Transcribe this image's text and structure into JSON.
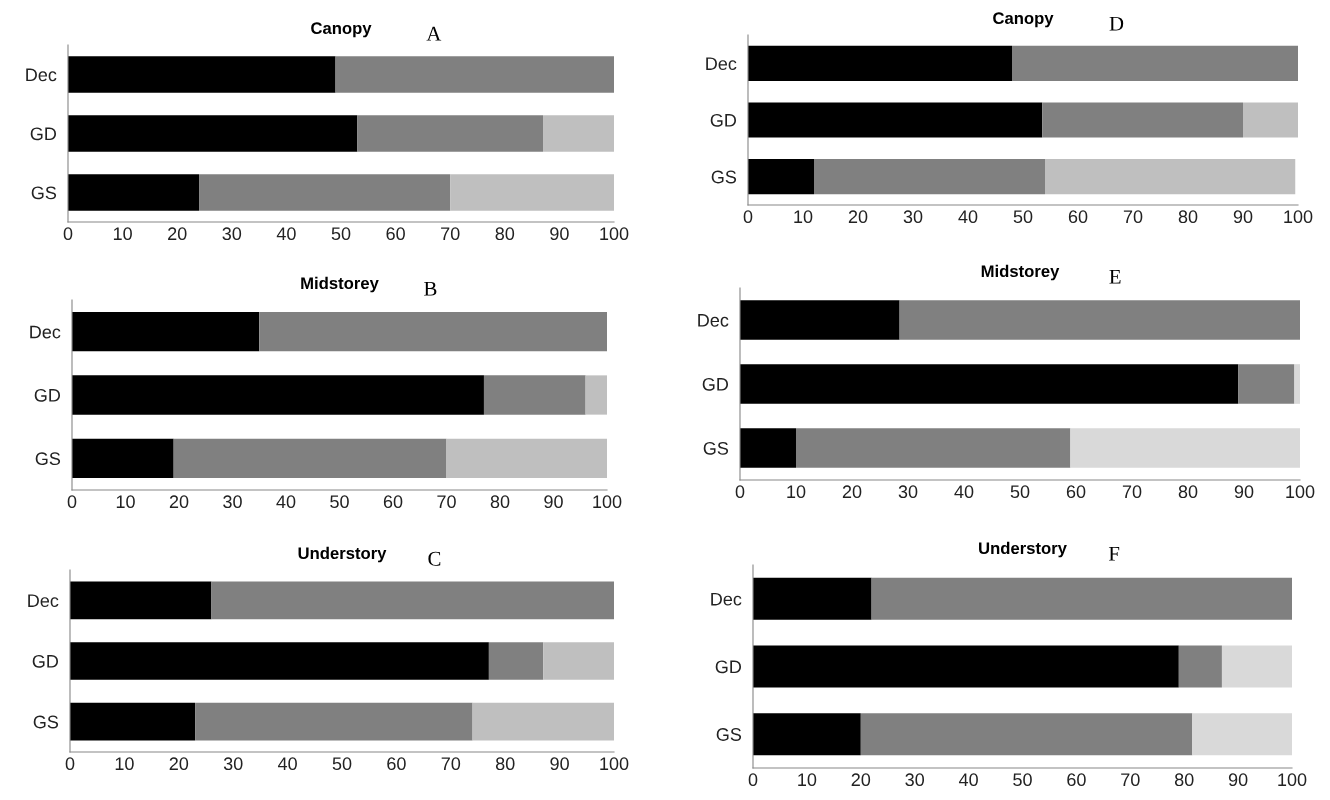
{
  "chart_data": [
    {
      "type": "bar",
      "orientation": "horizontal",
      "stacked": true,
      "title": "Canopy",
      "annotations": [
        "A"
      ],
      "categories": [
        "Dec",
        "GD",
        "GS"
      ],
      "xlim": [
        0,
        100
      ],
      "xticks": [
        0,
        10,
        20,
        30,
        40,
        50,
        60,
        70,
        80,
        90,
        100
      ],
      "series": [
        {
          "color": "#000000",
          "values": [
            49,
            53,
            24
          ]
        },
        {
          "color": "#808080",
          "values": [
            51,
            34,
            46
          ]
        },
        {
          "color": "#bfbfbf",
          "values": [
            null,
            13,
            30
          ]
        }
      ]
    },
    {
      "type": "bar",
      "orientation": "horizontal",
      "stacked": true,
      "title": "Canopy",
      "annotations": [
        "D"
      ],
      "categories": [
        "Dec",
        "GD",
        "GS"
      ],
      "xlim": [
        0,
        100
      ],
      "xticks": [
        0,
        10,
        20,
        30,
        40,
        50,
        60,
        70,
        80,
        90,
        100
      ],
      "series": [
        {
          "color": "#000000",
          "values": [
            48,
            53.5,
            12
          ]
        },
        {
          "color": "#808080",
          "values": [
            52,
            36.5,
            42
          ]
        },
        {
          "color": "#bfbfbf",
          "values": [
            null,
            10,
            45.5
          ]
        }
      ]
    },
    {
      "type": "bar",
      "orientation": "horizontal",
      "stacked": true,
      "title": "Midstorey",
      "annotations": [
        "B"
      ],
      "categories": [
        "Dec",
        "GD",
        "GS"
      ],
      "xlim": [
        0,
        100
      ],
      "xticks": [
        0,
        10,
        20,
        30,
        40,
        50,
        60,
        70,
        80,
        90,
        100
      ],
      "series": [
        {
          "color": "#000000",
          "values": [
            35,
            77,
            19
          ]
        },
        {
          "color": "#808080",
          "values": [
            65,
            19,
            51
          ]
        },
        {
          "color": "#bfbfbf",
          "values": [
            null,
            4,
            30
          ]
        }
      ]
    },
    {
      "type": "bar",
      "orientation": "horizontal",
      "stacked": true,
      "title": "Midstorey",
      "annotations": [
        "E"
      ],
      "categories": [
        "Dec",
        "GD",
        "GS"
      ],
      "xlim": [
        0,
        100
      ],
      "xticks": [
        0,
        10,
        20,
        30,
        40,
        50,
        60,
        70,
        80,
        90,
        100
      ],
      "series": [
        {
          "color": "#000000",
          "values": [
            28.5,
            89,
            10
          ]
        },
        {
          "color": "#808080",
          "values": [
            71.5,
            10,
            49
          ]
        },
        {
          "color": "#d9d9d9",
          "values": [
            null,
            1,
            41
          ]
        }
      ]
    },
    {
      "type": "bar",
      "orientation": "horizontal",
      "stacked": true,
      "title": "Understory",
      "annotations": [
        "C"
      ],
      "categories": [
        "Dec",
        "GD",
        "GS"
      ],
      "xlim": [
        0,
        100
      ],
      "xticks": [
        0,
        10,
        20,
        30,
        40,
        50,
        60,
        70,
        80,
        90,
        100
      ],
      "series": [
        {
          "color": "#000000",
          "values": [
            26,
            77,
            23
          ]
        },
        {
          "color": "#808080",
          "values": [
            74,
            10,
            51
          ]
        },
        {
          "color": "#bfbfbf",
          "values": [
            null,
            13,
            26
          ]
        }
      ]
    },
    {
      "type": "bar",
      "orientation": "horizontal",
      "stacked": true,
      "title": "Understory",
      "annotations": [
        "F"
      ],
      "categories": [
        "Dec",
        "GD",
        "GS"
      ],
      "xlim": [
        0,
        100
      ],
      "xticks": [
        0,
        10,
        20,
        30,
        40,
        50,
        60,
        70,
        80,
        90,
        100
      ],
      "series": [
        {
          "color": "#000000",
          "values": [
            22,
            79,
            20
          ]
        },
        {
          "color": "#808080",
          "values": [
            78,
            8,
            61.5
          ]
        },
        {
          "color": "#d9d9d9",
          "values": [
            null,
            13,
            18.5
          ]
        }
      ]
    }
  ]
}
